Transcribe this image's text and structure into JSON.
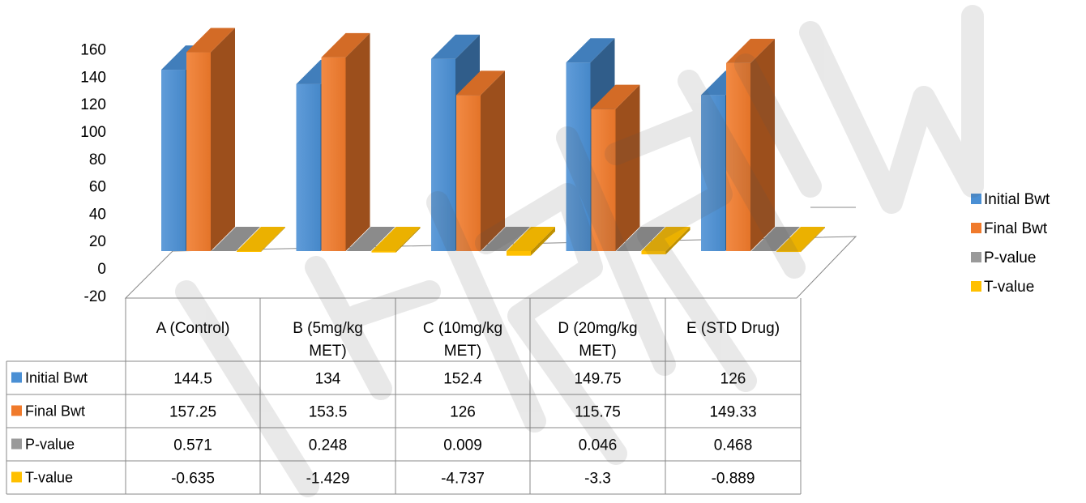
{
  "chart_data": {
    "type": "bar",
    "categories": [
      "A (Control)",
      "B (5mg/kg MET)",
      "C (10mg/kg MET)",
      "D (20mg/kg MET)",
      "E (STD Drug)"
    ],
    "category_lines": [
      [
        "A (Control)"
      ],
      [
        "B (5mg/kg",
        "MET)"
      ],
      [
        "C (10mg/kg",
        "MET)"
      ],
      [
        "D (20mg/kg",
        "MET)"
      ],
      [
        "E (STD Drug)"
      ]
    ],
    "series": [
      {
        "name": "Initial Bwt",
        "values": [
          144.5,
          134,
          152.4,
          149.75,
          126
        ],
        "labels": [
          "144.5",
          "134",
          "152.4",
          "149.75",
          "126"
        ],
        "color": "#4a8fd4"
      },
      {
        "name": "Final Bwt",
        "values": [
          157.25,
          153.5,
          126,
          115.75,
          149.33
        ],
        "labels": [
          "157.25",
          "153.5",
          "126",
          "115.75",
          "149.33"
        ],
        "color": "#f07a2b"
      },
      {
        "name": "P-value",
        "values": [
          0.571,
          0.248,
          0.009,
          0.046,
          0.468
        ],
        "labels": [
          "0.571",
          "0.248",
          "0.009",
          "0.046",
          "0.468"
        ],
        "color": "#9a9a9a"
      },
      {
        "name": "T-value",
        "values": [
          -0.635,
          -1.429,
          -4.737,
          -3.3,
          -0.889
        ],
        "labels": [
          "-0.635",
          "-1.429",
          "-4.737",
          "-3.3",
          "-0.889"
        ],
        "color": "#ffc000"
      }
    ],
    "y_ticks": [
      160,
      140,
      120,
      100,
      80,
      60,
      40,
      20,
      0,
      -20
    ],
    "ylim": [
      -20,
      160
    ],
    "view": "3d-column",
    "legend_position": "right",
    "data_table": true
  }
}
